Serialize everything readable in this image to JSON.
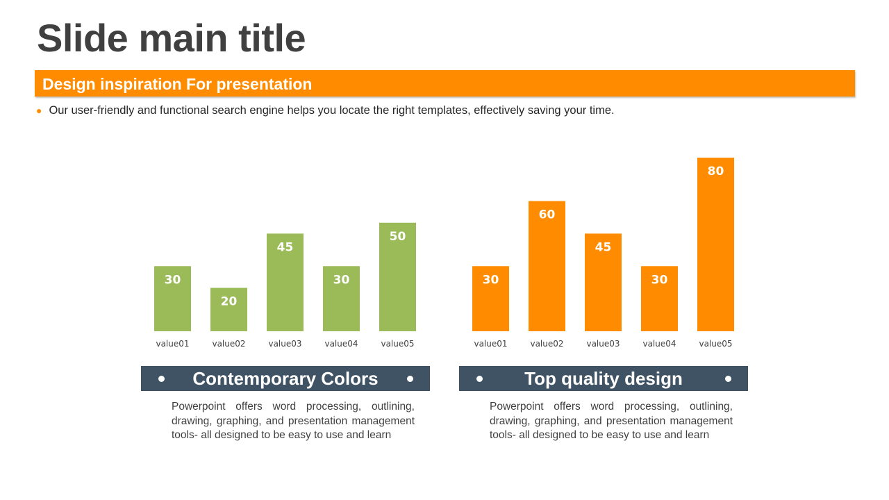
{
  "slide": {
    "title": "Slide main title",
    "banner": "Design inspiration For presentation",
    "bullet": "Our user-friendly and functional search engine helps you locate the right templates, effectively saving your time."
  },
  "colors": {
    "accent": "#ff8c00",
    "green": "#9bbb59",
    "caption_bg": "#3f5364",
    "title_text": "#404040"
  },
  "panels": [
    {
      "caption": "Contemporary Colors",
      "description": "Powerpoint offers word processing, outlining, drawing, graphing, and presentation management tools- all designed to be easy to use and learn"
    },
    {
      "caption": "Top quality design",
      "description": "Powerpoint offers word processing, outlining, drawing, graphing, and presentation management tools- all designed to be easy to use and learn"
    }
  ],
  "chart_data": [
    {
      "type": "bar",
      "categories": [
        "value01",
        "value02",
        "value03",
        "value04",
        "value05"
      ],
      "values": [
        30,
        20,
        45,
        30,
        50
      ],
      "color": "#9bbb59",
      "data_labels": true,
      "axes_visible": false,
      "grid": false
    },
    {
      "type": "bar",
      "categories": [
        "value01",
        "value02",
        "value03",
        "value04",
        "value05"
      ],
      "values": [
        30,
        60,
        45,
        30,
        80
      ],
      "color": "#ff8c00",
      "data_labels": true,
      "axes_visible": false,
      "grid": false
    }
  ]
}
